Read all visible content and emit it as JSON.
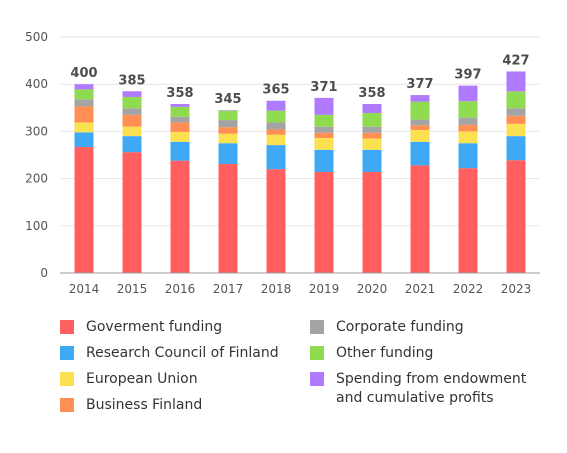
{
  "chart_data": {
    "type": "bar",
    "stacked": true,
    "title": "",
    "xlabel": "",
    "ylabel": "",
    "ylim": [
      0,
      500
    ],
    "yticks": [
      0,
      100,
      200,
      300,
      400,
      500
    ],
    "grid": true,
    "legend_position": "bottom",
    "categories": [
      "2014",
      "2015",
      "2016",
      "2017",
      "2018",
      "2019",
      "2020",
      "2021",
      "2022",
      "2023"
    ],
    "totals": [
      400,
      385,
      358,
      345,
      365,
      371,
      358,
      377,
      397,
      427
    ],
    "series": [
      {
        "name": "Goverment funding",
        "color": "#ff5f5f",
        "values": [
          267,
          256,
          238,
          231,
          220,
          214,
          214,
          228,
          222,
          239
        ]
      },
      {
        "name": "Research Council of Finland",
        "color": "#3fa9f5",
        "values": [
          31,
          34,
          40,
          44,
          51,
          47,
          47,
          50,
          53,
          51
        ]
      },
      {
        "name": "European Union",
        "color": "#fbe150",
        "values": [
          21,
          20,
          21,
          20,
          22,
          25,
          24,
          25,
          25,
          26
        ]
      },
      {
        "name": "Business Finland",
        "color": "#ff8f52",
        "values": [
          34,
          25,
          20,
          14,
          11,
          11,
          12,
          10,
          14,
          17
        ]
      },
      {
        "name": "Corporate funding",
        "color": "#a4a4a4",
        "values": [
          15,
          14,
          12,
          15,
          15,
          13,
          13,
          12,
          15,
          16
        ]
      },
      {
        "name": "Other funding",
        "color": "#8fdb4f",
        "values": [
          21,
          24,
          21,
          20,
          25,
          25,
          29,
          38,
          35,
          36
        ]
      },
      {
        "name": "Spending from endowment and cumulative profits",
        "color": "#b07aff",
        "values": [
          11,
          12,
          6,
          1,
          21,
          36,
          19,
          14,
          33,
          42
        ]
      }
    ]
  },
  "legend": {
    "left": [
      {
        "label": "Goverment funding",
        "color": "#ff5f5f"
      },
      {
        "label": "Research Council of Finland",
        "color": "#3fa9f5"
      },
      {
        "label": "European Union",
        "color": "#fbe150"
      },
      {
        "label": "Business Finland",
        "color": "#ff8f52"
      }
    ],
    "right": [
      {
        "label": "Corporate funding",
        "color": "#a4a4a4"
      },
      {
        "label": "Other funding",
        "color": "#8fdb4f"
      },
      {
        "label": "Spending from endowment and cumulative profits",
        "color": "#b07aff"
      }
    ]
  }
}
